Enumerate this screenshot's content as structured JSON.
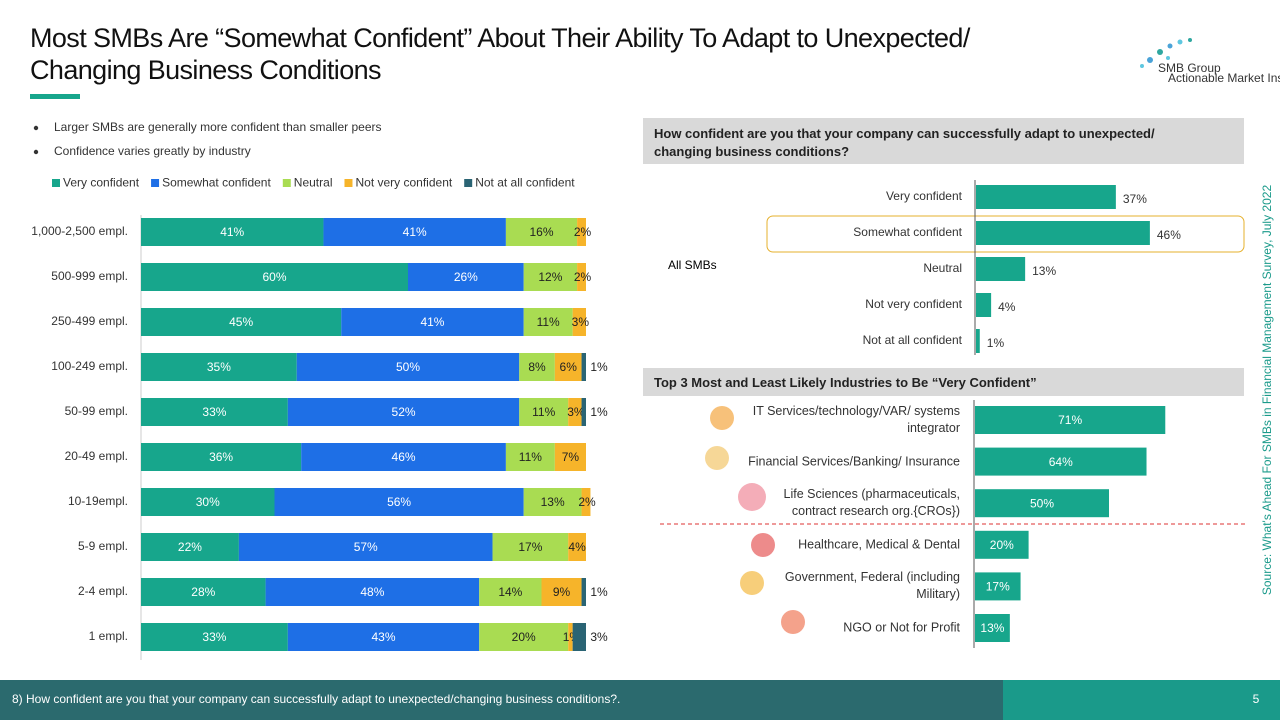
{
  "slide": {
    "title": "Most SMBs Are “Somewhat Confident” About Their Ability To Adapt to Unexpected/\nChanging Business Conditions",
    "bullets": [
      "Larger SMBs are generally more confident than smaller peers",
      "Confidence varies greatly by industry"
    ],
    "logo": "SMB Group",
    "logo_tagline": "Actionable Market Insight",
    "source": "Source: What's Ahead For SMBs in Financial Management Survey, July 2022",
    "footer": "8) How confident  are you that your company can successfully  adapt to unexpected/changing business  conditions?.",
    "page": 5
  },
  "chart_data": [
    {
      "type": "stacked_bar",
      "categories": [
        "1,000-2,500 empl.",
        "500-999 empl.",
        "250-499 empl.",
        "100-249 empl.",
        "50-99 empl.",
        "20-49 empl.",
        "10-19empl.",
        "5-9 empl.",
        "2-4 empl.",
        "1 empl."
      ],
      "series": [
        {
          "name": "Very confident",
          "color": "#17a68c",
          "values": [
            41,
            60,
            45,
            35,
            33,
            36,
            30,
            22,
            28,
            33
          ],
          "value_labels": [
            "41%",
            "60%",
            "45%",
            "35%",
            "33%",
            "36%",
            "30%",
            "22%",
            "28%",
            "33%"
          ]
        },
        {
          "name": "Somewhat confident",
          "color": "#1e6fe6",
          "values": [
            41,
            26,
            41,
            50,
            52,
            46,
            56,
            57,
            48,
            43
          ],
          "value_labels": [
            "41%",
            "26%",
            "41%",
            "50%",
            "52%",
            "46%",
            "56%",
            "57%",
            "48%",
            "43%"
          ]
        },
        {
          "name": "Neutral",
          "color": "#a9dc52",
          "values": [
            16,
            12,
            11,
            8,
            11,
            11,
            13,
            17,
            14,
            20
          ],
          "value_labels": [
            "16%",
            "12%",
            "11%",
            "8%",
            "11%",
            "11%",
            "13%",
            "17%",
            "14%",
            "20%"
          ]
        },
        {
          "name": "Not very confident",
          "color": "#f6b42a",
          "values": [
            2,
            2,
            3,
            6,
            3,
            7,
            2,
            4,
            9,
            1
          ],
          "value_labels": [
            "2%",
            "2%",
            "3%",
            "6%",
            "3%",
            "7%",
            "2%",
            "4%",
            "9%",
            "1%"
          ]
        },
        {
          "name": "Not at all confident",
          "color": "#2a6474",
          "values": [
            null,
            null,
            null,
            1,
            1,
            null,
            null,
            null,
            1,
            3
          ],
          "value_labels": [
            null,
            null,
            null,
            "1%",
            "1%",
            null,
            null,
            null,
            "1%",
            "3%"
          ]
        }
      ],
      "xlim": [
        0,
        100
      ]
    },
    {
      "type": "bar",
      "title": "How confident are you that your company can successfully adapt to unexpected/\nchanging business conditions?",
      "label": "All SMBs",
      "categories": [
        "Very confident",
        "Somewhat confident",
        "Neutral",
        "Not very confident",
        "Not at all confident"
      ],
      "values": [
        37,
        46,
        13,
        4,
        1
      ],
      "value_labels": [
        "37%",
        "46%",
        "13%",
        "4%",
        "1%"
      ],
      "color": "#17a68c",
      "xlim": [
        0,
        100
      ]
    },
    {
      "type": "bar",
      "title": "Top 3 Most and Least Likely Industries to Be “Very Confident”",
      "categories": [
        "IT Services/technology/VAR/ systems\nintegrator",
        "Financial Services/Banking/ Insurance",
        "Life Sciences (pharmaceuticals,\ncontract research org.{CROs})",
        "Healthcare, Medical & Dental",
        "Government, Federal (including\nMilitary)",
        "NGO or Not for Profit"
      ],
      "values": [
        71,
        64,
        50,
        20,
        17,
        13
      ],
      "value_labels": [
        "71%",
        "64%",
        "50%",
        "20%",
        "17%",
        "13%"
      ],
      "color": "#17a68c",
      "xlim": [
        0,
        100
      ]
    }
  ]
}
